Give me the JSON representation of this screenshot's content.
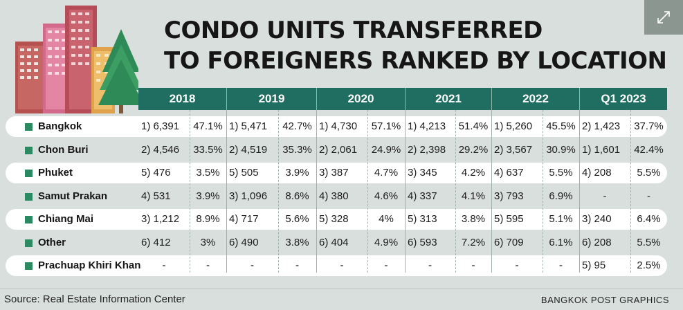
{
  "title_lines": [
    "CONDO UNITS TRANSFERRED",
    "TO FOREIGNERS RANKED BY LOCATION"
  ],
  "colors": {
    "header": "#1f6e61",
    "marker": "#2b8a62",
    "background": "#d9dfdc",
    "band": "#ffffff"
  },
  "expand_icon": "expand-arrows-icon",
  "chart_data": {
    "type": "table",
    "title": "CONDO UNITS TRANSFERRED TO FOREIGNERS RANKED BY LOCATION",
    "columns": [
      "2018",
      "2019",
      "2020",
      "2021",
      "2022",
      "Q1 2023"
    ],
    "rows": [
      {
        "location": "Bangkok",
        "cells": [
          [
            "1) 6,391",
            "47.1%"
          ],
          [
            "1) 5,471",
            "42.7%"
          ],
          [
            "1) 4,730",
            "57.1%"
          ],
          [
            "1) 4,213",
            "51.4%"
          ],
          [
            "1) 5,260",
            "45.5%"
          ],
          [
            "2) 1,423",
            "37.7%"
          ]
        ]
      },
      {
        "location": "Chon Buri",
        "cells": [
          [
            "2) 4,546",
            "33.5%"
          ],
          [
            "2) 4,519",
            "35.3%"
          ],
          [
            "2) 2,061",
            "24.9%"
          ],
          [
            "2) 2,398",
            "29.2%"
          ],
          [
            "2) 3,567",
            "30.9%"
          ],
          [
            "1) 1,601",
            "42.4%"
          ]
        ]
      },
      {
        "location": "Phuket",
        "cells": [
          [
            "5) 476",
            "3.5%"
          ],
          [
            "5) 505",
            "3.9%"
          ],
          [
            "3) 387",
            "4.7%"
          ],
          [
            "3) 345",
            "4.2%"
          ],
          [
            "4) 637",
            "5.5%"
          ],
          [
            "4) 208",
            "5.5%"
          ]
        ]
      },
      {
        "location": "Samut Prakan",
        "cells": [
          [
            "4) 531",
            "3.9%"
          ],
          [
            "3) 1,096",
            "8.6%"
          ],
          [
            "4) 380",
            "4.6%"
          ],
          [
            "4) 337",
            "4.1%"
          ],
          [
            "3) 793",
            "6.9%"
          ],
          [
            "-",
            "-"
          ]
        ]
      },
      {
        "location": "Chiang Mai",
        "cells": [
          [
            "3) 1,212",
            "8.9%"
          ],
          [
            "4) 717",
            "5.6%"
          ],
          [
            "5) 328",
            "4%"
          ],
          [
            "5) 313",
            "3.8%"
          ],
          [
            "5) 595",
            "5.1%"
          ],
          [
            "3) 240",
            "6.4%"
          ]
        ]
      },
      {
        "location": "Other",
        "cells": [
          [
            "6) 412",
            "3%"
          ],
          [
            "6) 490",
            "3.8%"
          ],
          [
            "6) 404",
            "4.9%"
          ],
          [
            "6) 593",
            "7.2%"
          ],
          [
            "6) 709",
            "6.1%"
          ],
          [
            "6) 208",
            "5.5%"
          ]
        ]
      },
      {
        "location": "Prachuap Khiri Khan",
        "cells": [
          [
            "-",
            "-"
          ],
          [
            "-",
            "-"
          ],
          [
            "-",
            "-"
          ],
          [
            "-",
            "-"
          ],
          [
            "-",
            "-"
          ],
          [
            "5) 95",
            "2.5%"
          ]
        ]
      }
    ]
  },
  "footer": {
    "source": "Source: Real Estate Information Center",
    "credit": "BANGKOK POST GRAPHICS"
  }
}
